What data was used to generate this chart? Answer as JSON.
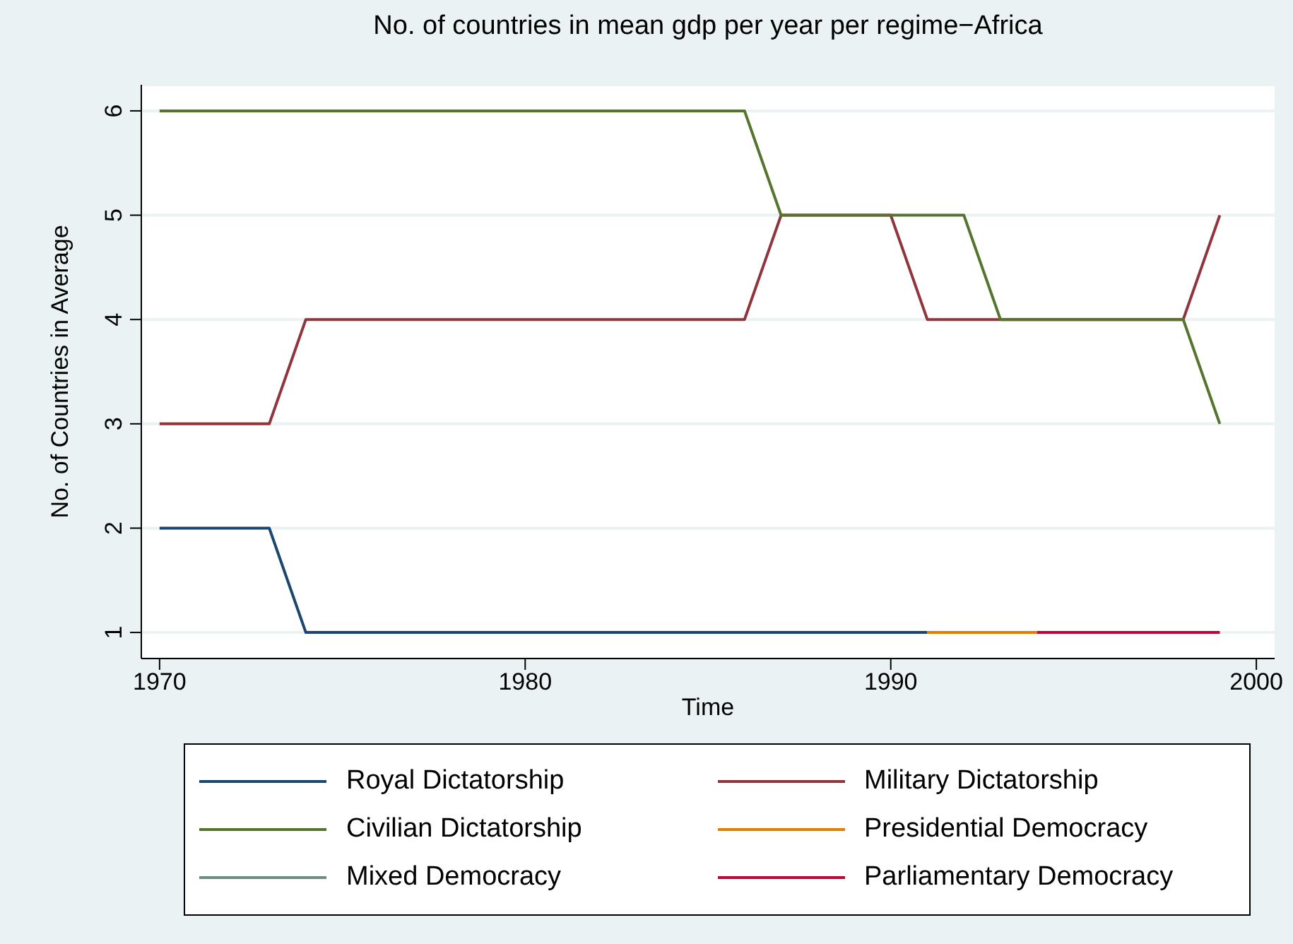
{
  "chart_data": {
    "type": "line",
    "title": "No. of countries in mean gdp per year per regime−Africa",
    "xlabel": "Time",
    "ylabel": "No. of Countries in Average",
    "x": [
      1970,
      1971,
      1972,
      1973,
      1974,
      1975,
      1976,
      1977,
      1978,
      1979,
      1980,
      1981,
      1982,
      1983,
      1984,
      1985,
      1986,
      1987,
      1988,
      1989,
      1990,
      1991,
      1992,
      1993,
      1994,
      1995,
      1996,
      1997,
      1998,
      1999
    ],
    "series": [
      {
        "name": "Royal Dictatorship",
        "color": "#1a476f",
        "values": [
          2,
          2,
          2,
          2,
          1,
          1,
          1,
          1,
          1,
          1,
          1,
          1,
          1,
          1,
          1,
          1,
          1,
          1,
          1,
          1,
          1,
          1,
          null,
          null,
          null,
          null,
          null,
          null,
          null,
          null
        ]
      },
      {
        "name": "Military Dictatorship",
        "color": "#90353b",
        "values": [
          3,
          3,
          3,
          3,
          4,
          4,
          4,
          4,
          4,
          4,
          4,
          4,
          4,
          4,
          4,
          4,
          4,
          5,
          5,
          5,
          5,
          4,
          4,
          4,
          4,
          4,
          4,
          4,
          4,
          5
        ]
      },
      {
        "name": "Civilian Dictatorship",
        "color": "#55752f",
        "values": [
          6,
          6,
          6,
          6,
          6,
          6,
          6,
          6,
          6,
          6,
          6,
          6,
          6,
          6,
          6,
          6,
          6,
          5,
          5,
          5,
          5,
          5,
          5,
          4,
          4,
          4,
          4,
          4,
          4,
          3
        ]
      },
      {
        "name": "Presidential Democracy",
        "color": "#e37e00",
        "values": [
          null,
          null,
          null,
          null,
          null,
          null,
          null,
          null,
          null,
          null,
          null,
          null,
          null,
          null,
          null,
          null,
          null,
          null,
          null,
          null,
          null,
          1,
          1,
          1,
          1,
          null,
          null,
          null,
          null,
          null
        ]
      },
      {
        "name": "Mixed Democracy",
        "color": "#6e8e84",
        "values": [
          null,
          null,
          null,
          null,
          null,
          null,
          null,
          null,
          null,
          null,
          null,
          null,
          null,
          null,
          null,
          null,
          null,
          null,
          null,
          null,
          null,
          null,
          null,
          null,
          null,
          null,
          null,
          null,
          null,
          null
        ]
      },
      {
        "name": "Parliamentary Democracy",
        "color": "#c10534",
        "values": [
          null,
          null,
          null,
          null,
          null,
          null,
          null,
          null,
          null,
          null,
          null,
          null,
          null,
          null,
          null,
          null,
          null,
          null,
          null,
          null,
          null,
          null,
          null,
          null,
          1,
          1,
          1,
          1,
          1,
          1
        ]
      }
    ],
    "xlim": [
      1969.5,
      2000.5
    ],
    "xticks": [
      1970,
      1980,
      1990,
      2000
    ],
    "ylim": [
      0.75,
      6.25
    ],
    "yticks": [
      1,
      2,
      3,
      4,
      5,
      6
    ],
    "grid": "y",
    "legend": "bottom",
    "marker": "none",
    "line_style": "solid"
  }
}
